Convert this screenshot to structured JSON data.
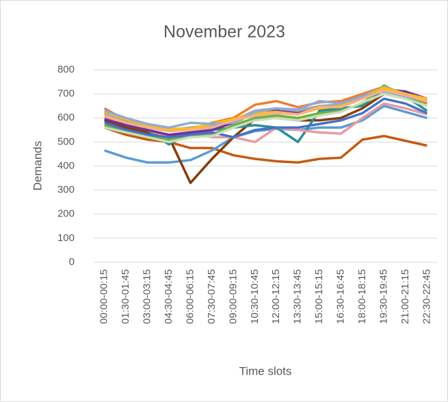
{
  "chart_data": {
    "type": "line",
    "title": "November 2023",
    "x_label": "Time slots",
    "y_label": "Demands",
    "categories": [
      "00:00-00:15",
      "01:30-01:45",
      "03:00-03:15",
      "04:30-04:45",
      "06:00-06:15",
      "07:30-07:45",
      "09:00-09:15",
      "10:30-10:45",
      "12:00-12:15",
      "13:30-13:45",
      "15:00-15:15",
      "16:30-16:45",
      "18:00-18:15",
      "19:30-19:45",
      "21:00-21:15",
      "22:30-22:45"
    ],
    "ylim": [
      0,
      800
    ],
    "yticks": [
      0,
      100,
      200,
      300,
      400,
      500,
      600,
      700,
      800
    ],
    "grid": true,
    "series": [
      {
        "color": "#c55a11",
        "values": [
          560,
          530,
          510,
          500,
          475,
          475,
          445,
          430,
          420,
          415,
          430,
          435,
          510,
          525,
          505,
          485
        ]
      },
      {
        "color": "#5b9bd5",
        "values": [
          465,
          435,
          415,
          415,
          425,
          465,
          520,
          545,
          555,
          550,
          560,
          560,
          590,
          650,
          625,
          600
        ]
      },
      {
        "color": "#843c0c",
        "values": [
          590,
          560,
          540,
          520,
          330,
          430,
          520,
          595,
          600,
          590,
          590,
          600,
          640,
          700,
          700,
          680
        ]
      },
      {
        "color": "#2e8b9a",
        "values": [
          610,
          580,
          550,
          490,
          540,
          550,
          560,
          570,
          560,
          500,
          630,
          640,
          650,
          720,
          690,
          630
        ]
      },
      {
        "color": "#e89aa0",
        "values": [
          600,
          580,
          550,
          520,
          540,
          520,
          520,
          500,
          560,
          550,
          540,
          535,
          600,
          660,
          640,
          615
        ]
      },
      {
        "color": "#ed7d31",
        "values": [
          640,
          590,
          560,
          545,
          550,
          580,
          600,
          655,
          670,
          645,
          665,
          670,
          700,
          730,
          700,
          660
        ]
      },
      {
        "color": "#70ad47",
        "values": [
          570,
          540,
          520,
          510,
          520,
          530,
          570,
          600,
          610,
          600,
          620,
          630,
          660,
          735,
          690,
          650
        ]
      },
      {
        "color": "#4472c4",
        "values": [
          580,
          550,
          530,
          520,
          530,
          540,
          520,
          550,
          560,
          560,
          575,
          590,
          620,
          680,
          660,
          620
        ]
      },
      {
        "color": "#7030a0",
        "values": [
          595,
          570,
          550,
          530,
          540,
          550,
          580,
          620,
          630,
          620,
          640,
          650,
          680,
          720,
          710,
          680
        ]
      },
      {
        "color": "#a5a5a5",
        "values": [
          620,
          590,
          565,
          550,
          560,
          570,
          590,
          630,
          640,
          630,
          650,
          655,
          690,
          730,
          700,
          670
        ]
      },
      {
        "color": "#ffc000",
        "values": [
          625,
          595,
          570,
          555,
          555,
          575,
          595,
          620,
          625,
          615,
          640,
          650,
          685,
          725,
          700,
          680
        ]
      },
      {
        "color": "#8faadc",
        "values": [
          630,
          600,
          575,
          560,
          580,
          575,
          580,
          625,
          640,
          635,
          670,
          660,
          690,
          710,
          690,
          670
        ]
      },
      {
        "color": "#f4b183",
        "values": [
          610,
          580,
          560,
          545,
          550,
          560,
          590,
          610,
          620,
          615,
          645,
          645,
          680,
          715,
          695,
          670
        ]
      },
      {
        "color": "#c5e0b4",
        "values": [
          560,
          540,
          520,
          500,
          520,
          525,
          560,
          590,
          600,
          590,
          610,
          625,
          665,
          700,
          680,
          650
        ]
      }
    ]
  }
}
